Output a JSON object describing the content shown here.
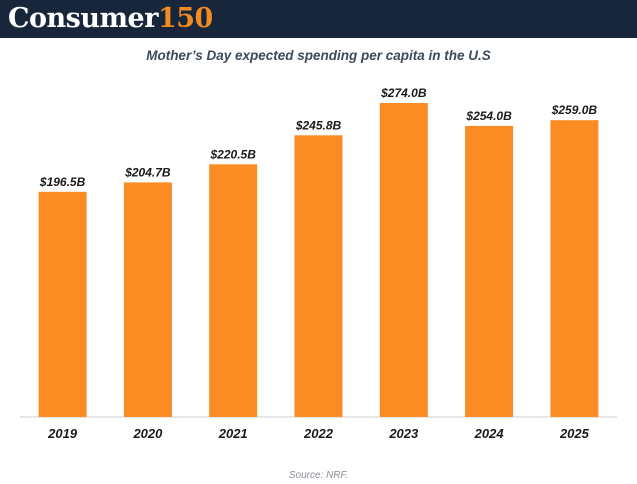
{
  "header": {
    "brand_word": "Consumer",
    "brand_number": "150"
  },
  "chart_data": {
    "type": "bar",
    "title": "Mother’s Day expected spending per capita in the U.S",
    "categories": [
      "2019",
      "2020",
      "2021",
      "2022",
      "2023",
      "2024",
      "2025"
    ],
    "values": [
      196.5,
      204.7,
      220.5,
      245.8,
      274.0,
      254.0,
      259.0
    ],
    "data_labels": [
      "$196.5B",
      "$204.7B",
      "$220.5B",
      "$245.8B",
      "$274.0B",
      "$254.0B",
      "$259.0B"
    ],
    "xlabel": "",
    "ylabel": "",
    "ylim": [
      0,
      274
    ],
    "grid": false,
    "bar_color": "#fb8c23"
  },
  "footer": {
    "source": "Source: NRF."
  }
}
